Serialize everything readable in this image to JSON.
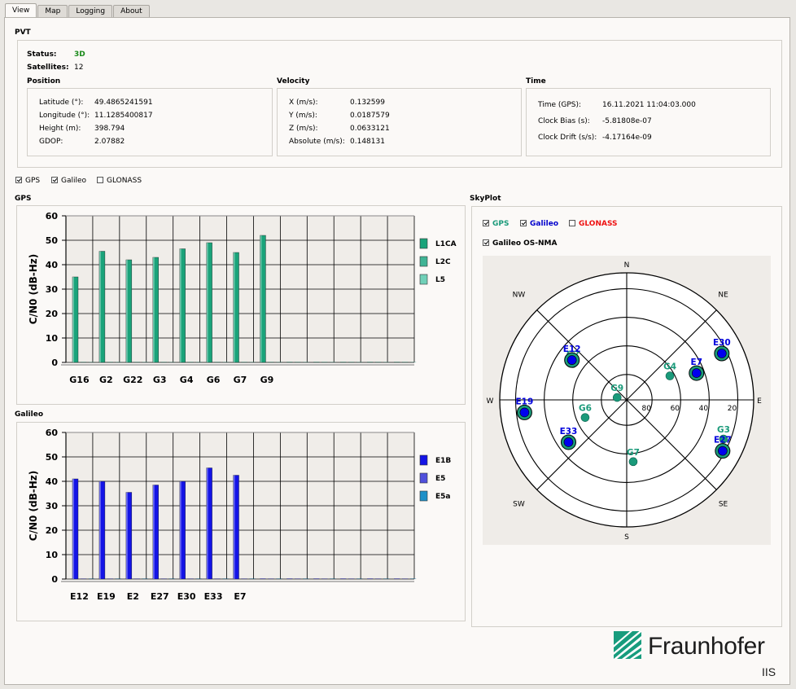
{
  "tabs": [
    "View",
    "Map",
    "Logging",
    "About"
  ],
  "pvt": {
    "title": "PVT",
    "status_label": "Status:",
    "status_value": "3D",
    "status_color": "#1a8a1a",
    "satellites_label": "Satellites:",
    "satellites_value": "12",
    "position": {
      "title": "Position",
      "rows": [
        {
          "label": "Latitude (°):",
          "value": "49.4865241591"
        },
        {
          "label": "Longitude (°):",
          "value": "11.1285400817"
        },
        {
          "label": "Height (m):",
          "value": "398.794"
        },
        {
          "label": "GDOP:",
          "value": "2.07882"
        }
      ]
    },
    "velocity": {
      "title": "Velocity",
      "rows": [
        {
          "label": "X (m/s):",
          "value": "0.132599"
        },
        {
          "label": "Y (m/s):",
          "value": "0.0187579"
        },
        {
          "label": "Z (m/s):",
          "value": "0.0633121"
        },
        {
          "label": "Absolute (m/s):",
          "value": "0.148131"
        }
      ]
    },
    "time": {
      "title": "Time",
      "rows": [
        {
          "label": "Time (GPS):",
          "value": "16.11.2021 11:04:03.000"
        },
        {
          "label": "Clock Bias (s):",
          "value": "-5.81808e-07"
        },
        {
          "label": "Clock Drift (s/s):",
          "value": "-4.17164e-09"
        }
      ]
    }
  },
  "constellation_filter": [
    {
      "label": "GPS",
      "checked": true
    },
    {
      "label": "Galileo",
      "checked": true
    },
    {
      "label": "GLONASS",
      "checked": false
    }
  ],
  "gps_chart_title": "GPS",
  "galileo_chart_title": "Galileo",
  "skyplot": {
    "title": "SkyPlot",
    "filters": [
      {
        "label": "GPS",
        "checked": true,
        "color": "#1a9a7a"
      },
      {
        "label": "Galileo",
        "checked": true,
        "color": "#0000cc"
      },
      {
        "label": "GLONASS",
        "checked": false,
        "color": "#ee1111"
      }
    ],
    "osnma_label": "Galileo OS-NMA",
    "osnma_checked": true,
    "directions": [
      "N",
      "NE",
      "E",
      "SE",
      "S",
      "SW",
      "W",
      "NW"
    ],
    "ring_labels": [
      "80",
      "60",
      "40",
      "20"
    ],
    "satellites": [
      {
        "name": "G2",
        "system": "GPS",
        "az": 304,
        "el": 44
      },
      {
        "name": "G4",
        "system": "GPS",
        "az": 61,
        "el": 55
      },
      {
        "name": "G9",
        "system": "GPS",
        "az": 284,
        "el": 83
      },
      {
        "name": "G6",
        "system": "GPS",
        "az": 247,
        "el": 58
      },
      {
        "name": "G3",
        "system": "GPS",
        "az": 112,
        "el": 16
      },
      {
        "name": "G7",
        "system": "GPS",
        "az": 174,
        "el": 46
      },
      {
        "name": "E12",
        "system": "Galileo",
        "az": 306,
        "el": 42
      },
      {
        "name": "E7",
        "system": "Galileo",
        "az": 69,
        "el": 37
      },
      {
        "name": "E30",
        "system": "Galileo",
        "az": 64,
        "el": 15
      },
      {
        "name": "E19",
        "system": "Galileo",
        "az": 263,
        "el": 17
      },
      {
        "name": "E33",
        "system": "Galileo",
        "az": 234,
        "el": 39
      },
      {
        "name": "E27",
        "system": "Galileo",
        "az": 118,
        "el": 13
      }
    ]
  },
  "colors": {
    "gps": "#1a9a7a",
    "galileo": "#0000dd",
    "glonass": "#ee1111",
    "e1b": "#1414e6",
    "e5": "#5050dc",
    "e5a": "#1e90c8",
    "l1ca": "#1aa37a",
    "l2c": "#40b495",
    "l5": "#70d0b8"
  },
  "chart_data": [
    {
      "type": "bar",
      "title": "GPS",
      "ylabel": "C/N0 (dB-Hz)",
      "xlabel": "",
      "ylim": [
        0,
        60
      ],
      "yticks": [
        0,
        10,
        20,
        30,
        40,
        50,
        60
      ],
      "grid": true,
      "legend_position": "right",
      "categories": [
        "G16",
        "G2",
        "G22",
        "G3",
        "G4",
        "G6",
        "G7",
        "G9",
        "",
        "",
        "",
        "",
        ""
      ],
      "series": [
        {
          "name": "L1CA",
          "values": [
            35,
            45.5,
            42,
            43,
            46.5,
            49,
            45,
            52,
            0,
            0,
            0,
            0,
            0
          ]
        },
        {
          "name": "L2C",
          "values": [
            0,
            0,
            0,
            0,
            0,
            0,
            0,
            0,
            0,
            0,
            0,
            0,
            0
          ]
        },
        {
          "name": "L5",
          "values": [
            0,
            0,
            0,
            0,
            0,
            0,
            0,
            0,
            0,
            0,
            0,
            0,
            0
          ]
        }
      ]
    },
    {
      "type": "bar",
      "title": "Galileo",
      "ylabel": "C/N0 (dB-Hz)",
      "xlabel": "",
      "ylim": [
        0,
        60
      ],
      "yticks": [
        0,
        10,
        20,
        30,
        40,
        50,
        60
      ],
      "grid": true,
      "legend_position": "right",
      "categories": [
        "E12",
        "E19",
        "E2",
        "E27",
        "E30",
        "E33",
        "E7",
        "",
        "",
        "",
        "",
        "",
        ""
      ],
      "series": [
        {
          "name": "E1B",
          "values": [
            41,
            40,
            35.5,
            38.5,
            40,
            45.5,
            42.5,
            0,
            0,
            0,
            0,
            0,
            0
          ]
        },
        {
          "name": "E5",
          "values": [
            0,
            0,
            0,
            0,
            0,
            0,
            0,
            0,
            0,
            0,
            0,
            0,
            0
          ]
        },
        {
          "name": "E5a",
          "values": [
            0,
            0,
            0,
            0,
            0,
            0,
            0,
            0,
            0,
            0,
            0,
            0,
            0
          ]
        }
      ]
    }
  ],
  "logo": {
    "name": "Fraunhofer",
    "sub": "IIS"
  }
}
